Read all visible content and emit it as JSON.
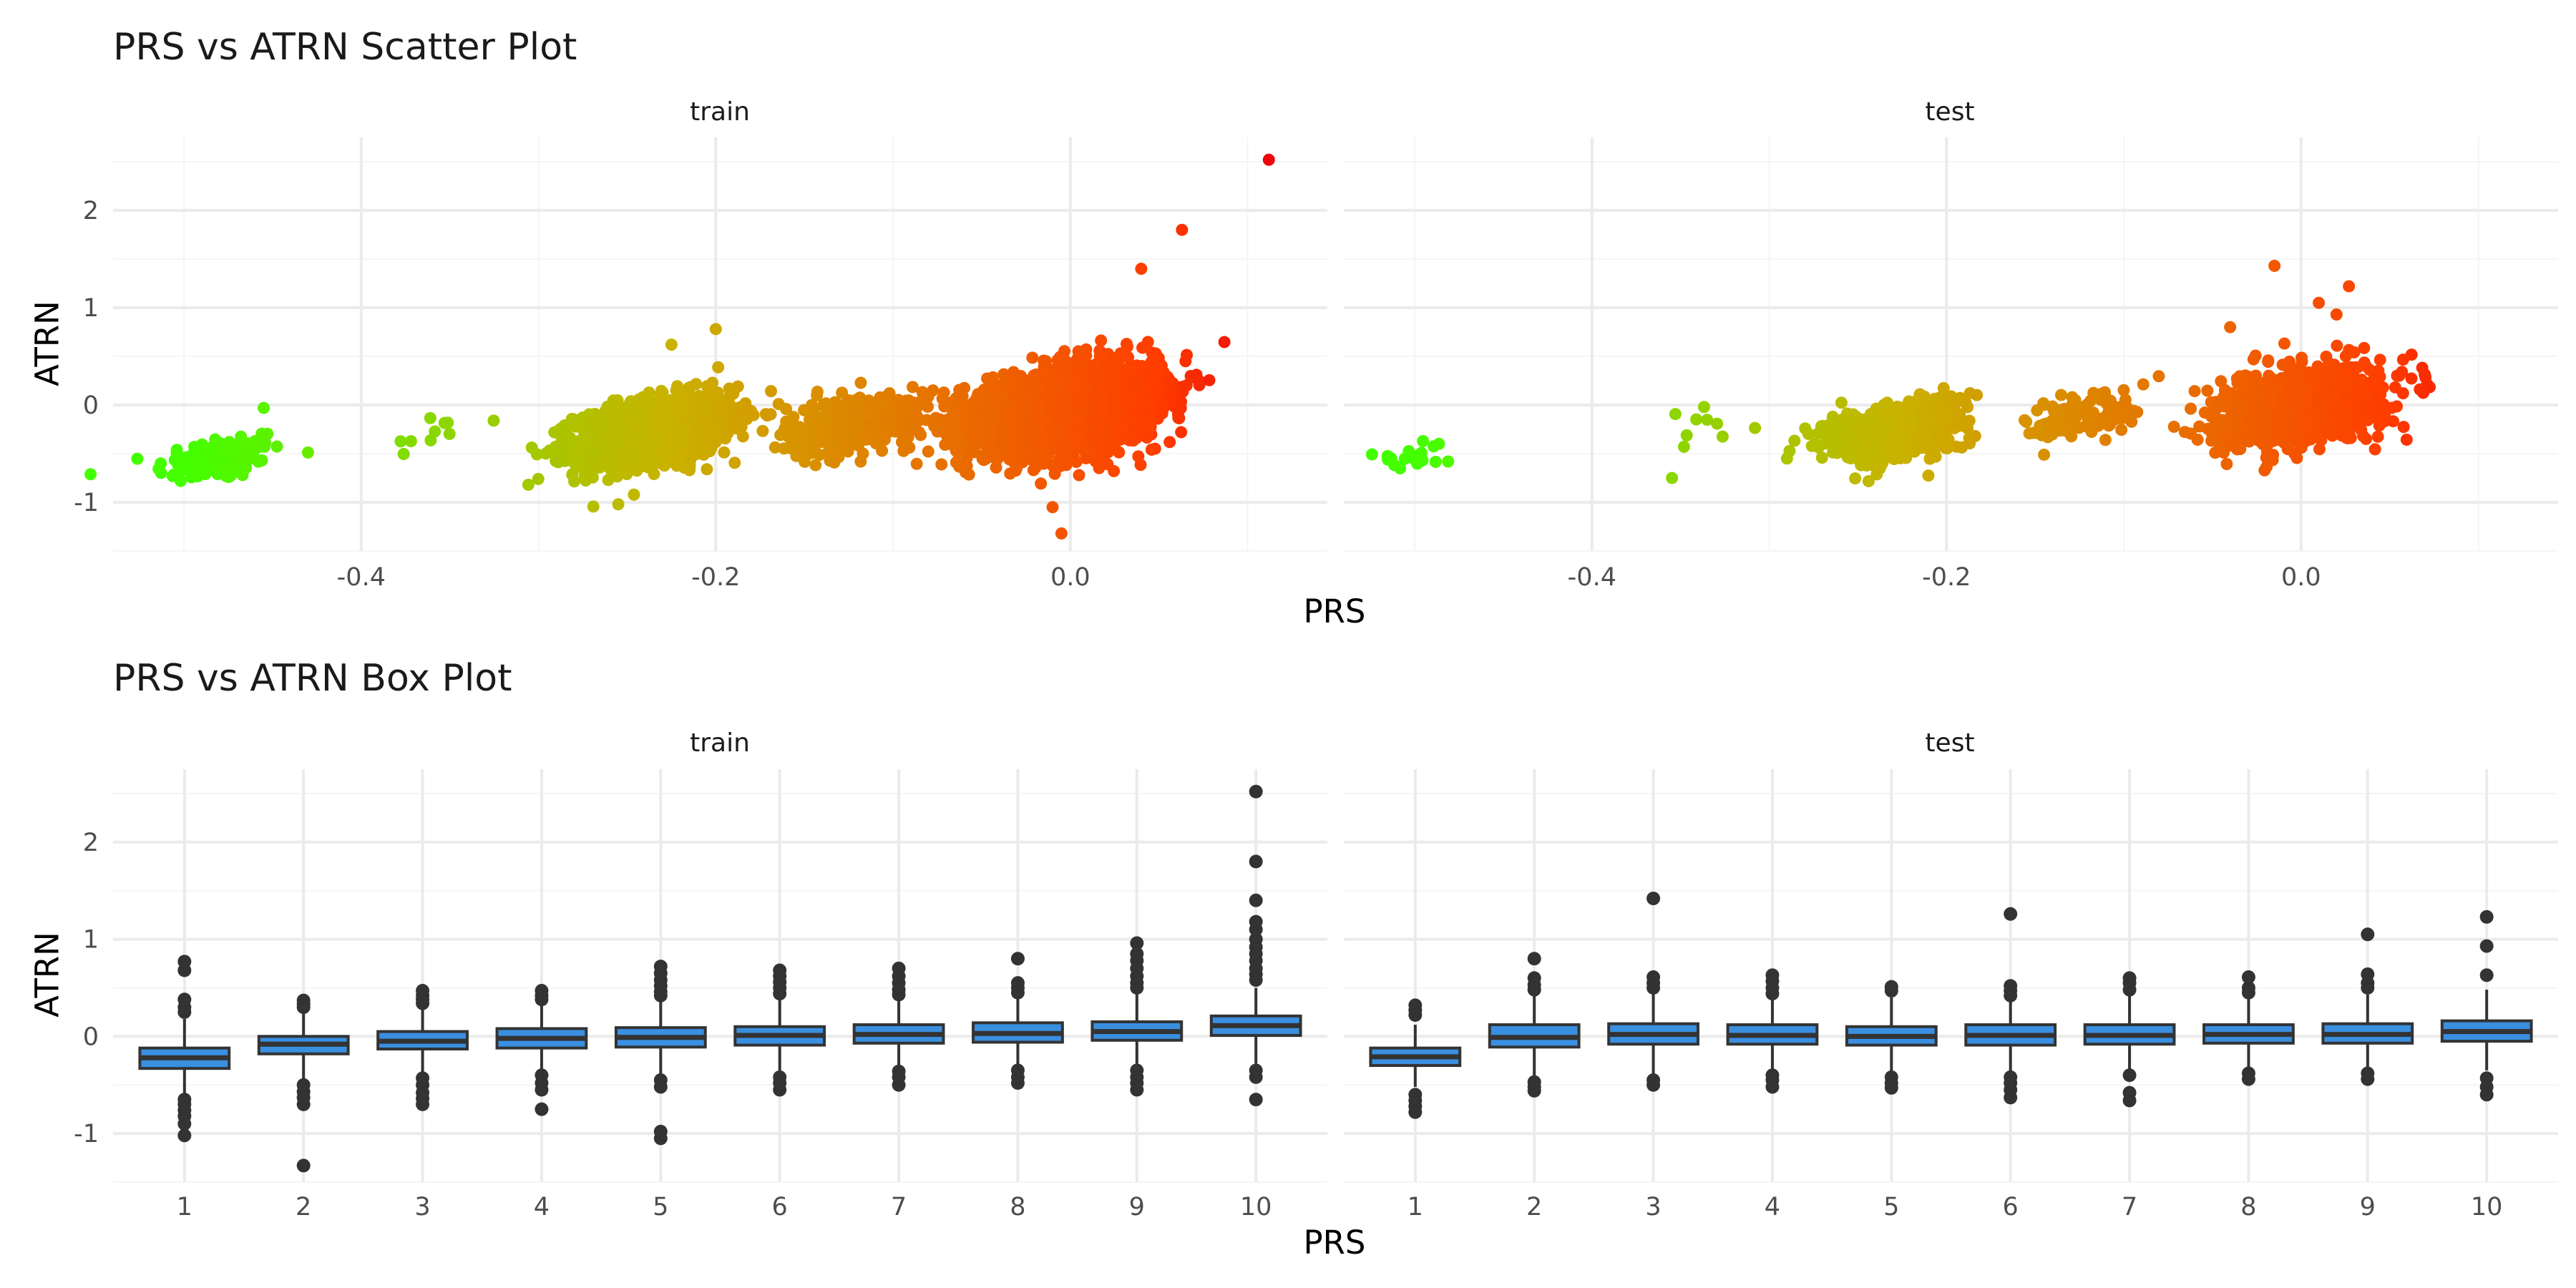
{
  "scatter_title": "PRS vs ATRN Scatter Plot",
  "box_title": "PRS vs ATRN Box Plot",
  "x_axis_title": "PRS",
  "y_axis_title": "ATRN",
  "facets": [
    "train",
    "test"
  ],
  "colors": {
    "low_prs": "#44ff00",
    "mid_prs": "#c8b400",
    "high_prs": "#ff3c00",
    "top_prs": "#e8000b",
    "box_fill": "#3a8fe0",
    "box_line": "#333333",
    "outlier": "#333333",
    "grid_major": "#ebebeb",
    "grid_minor": "#f5f5f5"
  },
  "chart_data": [
    {
      "type": "scatter",
      "title": "PRS vs ATRN Scatter Plot",
      "xlabel": "PRS",
      "ylabel": "ATRN",
      "facets": [
        "train",
        "test"
      ],
      "x_ticks": [
        -0.4,
        -0.2,
        0.0
      ],
      "x_tick_labels": [
        "-0.4",
        "-0.2",
        "0.0"
      ],
      "y_ticks": [
        -1,
        0,
        1,
        2
      ],
      "y_tick_labels": [
        "-1",
        "0",
        "1",
        "2"
      ],
      "xlim": [
        -0.54,
        0.145
      ],
      "ylim": [
        -1.5,
        2.75
      ],
      "color_encoding": "PRS (green = low, orange/red = high)",
      "clusters": {
        "train": [
          {
            "x_center": -0.48,
            "x_spread": 0.018,
            "y_center": -0.55,
            "y_spread": 0.12,
            "n": 110
          },
          {
            "x_center": -0.36,
            "x_spread": 0.015,
            "y_center": -0.28,
            "y_spread": 0.1,
            "n": 10
          },
          {
            "x_center": -0.235,
            "x_spread": 0.022,
            "y_center": -0.27,
            "y_spread": 0.16,
            "n": 1600
          },
          {
            "x_center": -0.12,
            "x_spread": 0.02,
            "y_center": -0.18,
            "y_spread": 0.14,
            "n": 420
          },
          {
            "x_center": 0.0,
            "x_spread": 0.024,
            "y_center": -0.05,
            "y_spread": 0.2,
            "n": 3200
          }
        ],
        "test": [
          {
            "x_center": -0.5,
            "x_spread": 0.012,
            "y_center": -0.55,
            "y_spread": 0.08,
            "n": 22
          },
          {
            "x_center": -0.34,
            "x_spread": 0.02,
            "y_center": -0.25,
            "y_spread": 0.15,
            "n": 10
          },
          {
            "x_center": -0.23,
            "x_spread": 0.02,
            "y_center": -0.27,
            "y_spread": 0.15,
            "n": 520
          },
          {
            "x_center": -0.12,
            "x_spread": 0.017,
            "y_center": -0.1,
            "y_spread": 0.13,
            "n": 110
          },
          {
            "x_center": 0.0,
            "x_spread": 0.022,
            "y_center": -0.02,
            "y_spread": 0.18,
            "n": 1250
          }
        ]
      },
      "notable_points": {
        "train": [
          {
            "x": 0.112,
            "y": 2.52
          },
          {
            "x": 0.063,
            "y": 1.8
          },
          {
            "x": 0.04,
            "y": 1.4
          },
          {
            "x": -0.005,
            "y": -1.32
          },
          {
            "x": -0.255,
            "y": -1.02
          },
          {
            "x": -0.01,
            "y": -1.05
          },
          {
            "x": -0.2,
            "y": 0.78
          },
          {
            "x": -0.225,
            "y": 0.62
          },
          {
            "x": -0.455,
            "y": -0.03
          },
          {
            "x": 0.065,
            "y": 0.45
          }
        ],
        "test": [
          {
            "x": -0.015,
            "y": 1.43
          },
          {
            "x": 0.027,
            "y": 1.22
          },
          {
            "x": 0.01,
            "y": 1.05
          },
          {
            "x": 0.02,
            "y": 0.93
          },
          {
            "x": 0.067,
            "y": 0.16
          },
          {
            "x": -0.29,
            "y": -0.55
          },
          {
            "x": -0.04,
            "y": 0.8
          }
        ]
      }
    },
    {
      "type": "box",
      "title": "PRS vs ATRN Box Plot",
      "xlabel": "PRS",
      "ylabel": "ATRN",
      "facets": [
        "train",
        "test"
      ],
      "categories": [
        "1",
        "2",
        "3",
        "4",
        "5",
        "6",
        "7",
        "8",
        "9",
        "10"
      ],
      "y_ticks": [
        -1,
        0,
        1,
        2
      ],
      "y_tick_labels": [
        "-1",
        "0",
        "1",
        "2"
      ],
      "ylim": [
        -1.5,
        2.75
      ],
      "boxes": {
        "train": [
          {
            "q1": -0.33,
            "median": -0.22,
            "q3": -0.12,
            "whisker_low": -0.6,
            "whisker_high": 0.18,
            "outliers": [
              0.77,
              0.68,
              0.38,
              0.3,
              0.25,
              -0.65,
              -0.7,
              -0.76,
              -0.82,
              -0.9,
              -1.02
            ]
          },
          {
            "q1": -0.18,
            "median": -0.08,
            "q3": 0.0,
            "whisker_low": -0.44,
            "whisker_high": 0.27,
            "outliers": [
              0.37,
              0.33,
              0.3,
              -0.5,
              -0.57,
              -0.63,
              -0.7,
              -1.33
            ]
          },
          {
            "q1": -0.13,
            "median": -0.05,
            "q3": 0.05,
            "whisker_low": -0.38,
            "whisker_high": 0.32,
            "outliers": [
              0.47,
              0.42,
              0.38,
              0.34,
              -0.43,
              -0.5,
              -0.58,
              -0.64,
              -0.7
            ]
          },
          {
            "q1": -0.12,
            "median": -0.02,
            "q3": 0.08,
            "whisker_low": -0.4,
            "whisker_high": 0.35,
            "outliers": [
              0.47,
              0.42,
              0.38,
              -0.4,
              -0.48,
              -0.55,
              -0.75
            ]
          },
          {
            "q1": -0.11,
            "median": -0.01,
            "q3": 0.09,
            "whisker_low": -0.42,
            "whisker_high": 0.38,
            "outliers": [
              0.72,
              0.65,
              0.58,
              0.52,
              0.46,
              0.42,
              -0.45,
              -0.52,
              -0.98,
              -1.05
            ]
          },
          {
            "q1": -0.09,
            "median": 0.01,
            "q3": 0.1,
            "whisker_low": -0.38,
            "whisker_high": 0.4,
            "outliers": [
              0.68,
              0.62,
              0.56,
              0.5,
              0.44,
              -0.42,
              -0.48,
              -0.55
            ]
          },
          {
            "q1": -0.07,
            "median": 0.02,
            "q3": 0.12,
            "whisker_low": -0.36,
            "whisker_high": 0.4,
            "outliers": [
              0.7,
              0.62,
              0.55,
              0.48,
              0.43,
              -0.36,
              -0.42,
              -0.5
            ]
          },
          {
            "q1": -0.06,
            "median": 0.03,
            "q3": 0.14,
            "whisker_low": -0.33,
            "whisker_high": 0.42,
            "outliers": [
              0.8,
              0.55,
              0.5,
              0.45,
              -0.35,
              -0.42,
              -0.48
            ]
          },
          {
            "q1": -0.04,
            "median": 0.05,
            "q3": 0.15,
            "whisker_low": -0.32,
            "whisker_high": 0.45,
            "outliers": [
              0.96,
              0.85,
              0.78,
              0.7,
              0.62,
              0.55,
              0.5,
              -0.35,
              -0.42,
              -0.48,
              -0.55
            ]
          },
          {
            "q1": 0.01,
            "median": 0.11,
            "q3": 0.21,
            "whisker_low": -0.28,
            "whisker_high": 0.5,
            "outliers": [
              2.52,
              1.8,
              1.4,
              1.18,
              1.1,
              1.0,
              0.92,
              0.85,
              0.78,
              0.7,
              0.64,
              0.58,
              -0.35,
              -0.42,
              -0.65
            ]
          }
        ],
        "test": [
          {
            "q1": -0.3,
            "median": -0.21,
            "q3": -0.12,
            "whisker_low": -0.52,
            "whisker_high": 0.12,
            "outliers": [
              0.32,
              0.27,
              0.22,
              -0.6,
              -0.66,
              -0.72,
              -0.78
            ]
          },
          {
            "q1": -0.11,
            "median": -0.01,
            "q3": 0.12,
            "whisker_low": -0.42,
            "whisker_high": 0.45,
            "outliers": [
              0.8,
              0.6,
              0.53,
              0.48,
              -0.47,
              -0.52,
              -0.56
            ]
          },
          {
            "q1": -0.08,
            "median": 0.02,
            "q3": 0.13,
            "whisker_low": -0.42,
            "whisker_high": 0.45,
            "outliers": [
              1.42,
              0.61,
              0.55,
              0.5,
              -0.45,
              -0.5
            ]
          },
          {
            "q1": -0.08,
            "median": 0.01,
            "q3": 0.12,
            "whisker_low": -0.38,
            "whisker_high": 0.42,
            "outliers": [
              0.63,
              0.57,
              0.5,
              0.44,
              -0.4,
              -0.45,
              -0.52
            ]
          },
          {
            "q1": -0.09,
            "median": 0.0,
            "q3": 0.1,
            "whisker_low": -0.4,
            "whisker_high": 0.4,
            "outliers": [
              0.51,
              0.47,
              -0.42,
              -0.48,
              -0.53
            ]
          },
          {
            "q1": -0.09,
            "median": 0.01,
            "q3": 0.12,
            "whisker_low": -0.4,
            "whisker_high": 0.4,
            "outliers": [
              1.26,
              0.52,
              0.47,
              0.42,
              -0.42,
              -0.48,
              -0.55,
              -0.63
            ]
          },
          {
            "q1": -0.08,
            "median": 0.01,
            "q3": 0.12,
            "whisker_low": -0.35,
            "whisker_high": 0.44,
            "outliers": [
              0.6,
              0.55,
              0.48,
              -0.4,
              -0.58,
              -0.66
            ]
          },
          {
            "q1": -0.07,
            "median": 0.02,
            "q3": 0.12,
            "whisker_low": -0.36,
            "whisker_high": 0.42,
            "outliers": [
              0.61,
              0.5,
              0.45,
              -0.38,
              -0.44
            ]
          },
          {
            "q1": -0.07,
            "median": 0.02,
            "q3": 0.13,
            "whisker_low": -0.35,
            "whisker_high": 0.43,
            "outliers": [
              1.05,
              0.64,
              0.55,
              0.5,
              -0.38,
              -0.44
            ]
          },
          {
            "q1": -0.05,
            "median": 0.05,
            "q3": 0.16,
            "whisker_low": -0.35,
            "whisker_high": 0.48,
            "outliers": [
              1.23,
              0.93,
              0.63,
              -0.43,
              -0.52,
              -0.6
            ]
          }
        ]
      }
    }
  ]
}
